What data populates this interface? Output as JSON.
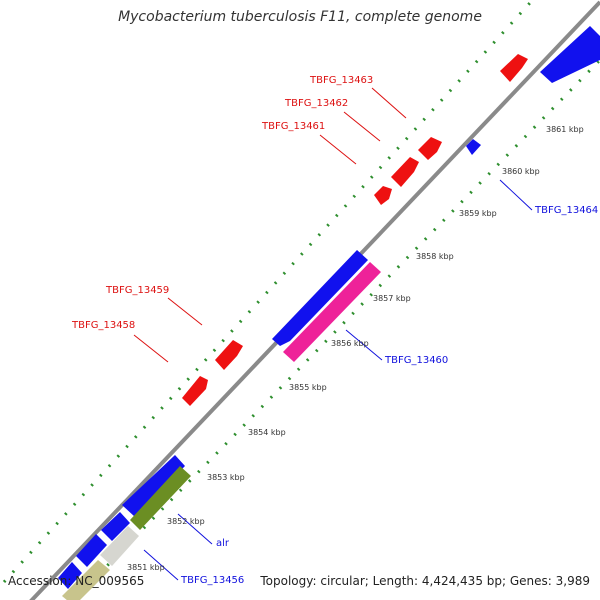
{
  "title": "Mycobacterium tuberculosis F11, complete genome",
  "accession": "Accession: NC_009565",
  "summary": "Topology: circular; Length: 4,424,435 bp; Genes: 3,989",
  "colors": {
    "backbone": "#8a8a8a",
    "ticks": "#2f8f2f",
    "forward_gene": "#ee1111",
    "reverse_gene": "#1111ee",
    "feature_magenta": "#ee2299",
    "feature_olive": "#6b8e23",
    "feature_tan": "#c8c48c",
    "label_red": "#dd1111",
    "label_blue": "#1111dd"
  },
  "tick_labels": [
    "3851 kbp",
    "3852 kbp",
    "3853 kbp",
    "3854 kbp",
    "3855 kbp",
    "3856 kbp",
    "3857 kbp",
    "3858 kbp",
    "3859 kbp",
    "3860 kbp",
    "3861 kbp"
  ],
  "gene_labels": {
    "forward": [
      "TBFG_13458",
      "TBFG_13459",
      "TBFG_13461",
      "TBFG_13462",
      "TBFG_13463"
    ],
    "reverse": [
      "TBFG_13456",
      "alr",
      "TBFG_13460",
      "TBFG_13464"
    ]
  }
}
